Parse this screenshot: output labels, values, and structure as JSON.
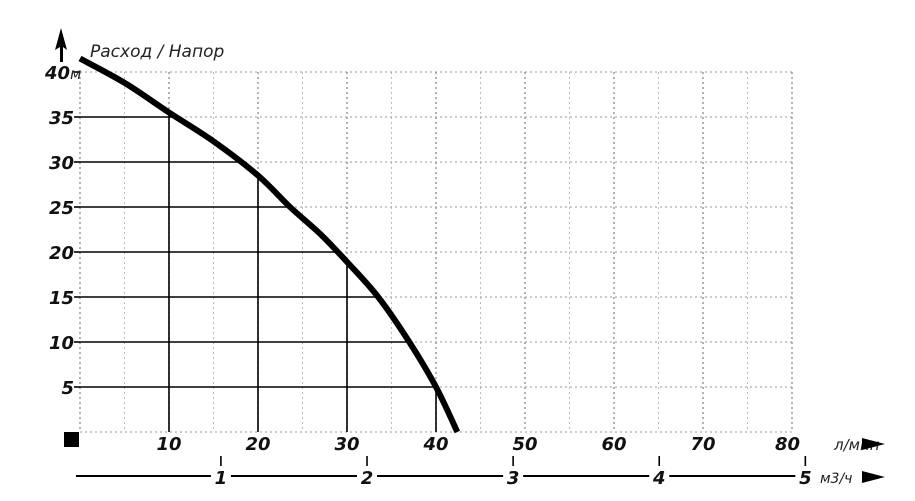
{
  "chart_data": {
    "type": "line",
    "title": "Расход / Напор",
    "y_unit": "м",
    "x_unit": "л/мин",
    "x2_unit": "м3/ч",
    "xlim": [
      0,
      80
    ],
    "ylim": [
      0,
      40
    ],
    "x_ticks": [
      10,
      20,
      30,
      40,
      50,
      60,
      70,
      80
    ],
    "y_ticks": [
      5,
      10,
      15,
      20,
      25,
      30,
      35,
      40
    ],
    "x2_ticks": [
      1,
      2,
      3,
      4,
      5
    ],
    "grid": true,
    "series": [
      {
        "points": [
          [
            0,
            41.5
          ],
          [
            5,
            38.8
          ],
          [
            10,
            35.5
          ],
          [
            15,
            32.3
          ],
          [
            20,
            28.5
          ],
          [
            23.6,
            25
          ],
          [
            27,
            22
          ],
          [
            30,
            18.9
          ],
          [
            33.5,
            15
          ],
          [
            37,
            10
          ],
          [
            40,
            5
          ],
          [
            42.4,
            0
          ]
        ]
      }
    ],
    "reference_lines_y": [
      35,
      30,
      25,
      20,
      15,
      10,
      5
    ],
    "reference_lines_x": [
      10,
      20,
      30,
      40
    ]
  }
}
